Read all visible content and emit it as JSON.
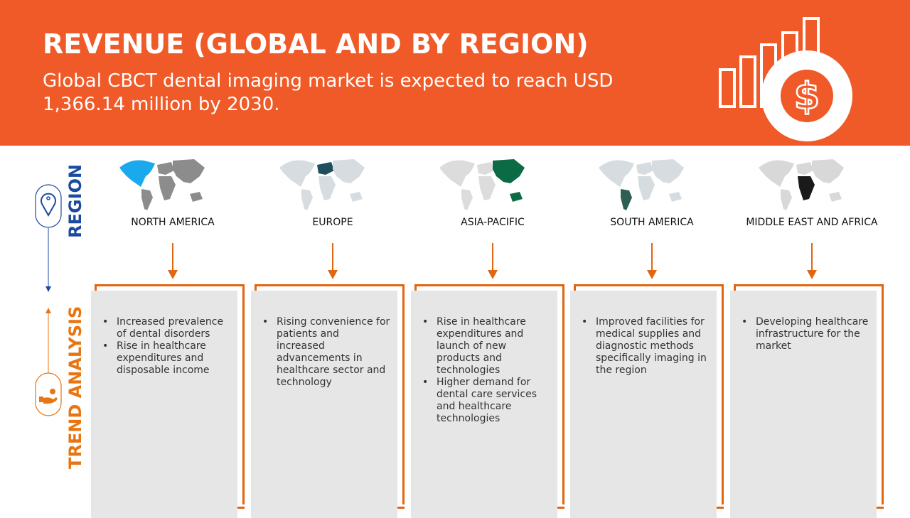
{
  "header": {
    "title": "REVENUE (GLOBAL AND BY REGION)",
    "subtitle": "Global CBCT dental imaging market is expected to reach USD 1,366.14 million by 2030.",
    "icon": "revenue-chart-dollar-icon",
    "background": "#F05A28"
  },
  "side": {
    "region_label": "REGION",
    "trend_label": "TREND ANALYSIS",
    "region_color": "#1B4BA0",
    "trend_color": "#E87511"
  },
  "regions": [
    {
      "name": "NORTH AMERICA",
      "highlight": "#19A9EC",
      "map_base": "#8C8C8C",
      "bullets": [
        "Increased prevalence of dental disorders",
        "Rise in healthcare expenditures and disposable income"
      ]
    },
    {
      "name": "EUROPE",
      "highlight": "#1E4F5E",
      "map_base": "#D6DCDF",
      "bullets": [
        "Rising convenience for patients and increased advancements in healthcare sector and technology"
      ]
    },
    {
      "name": "ASIA-PACIFIC",
      "highlight": "#0B6B45",
      "map_base": "#DCDCDC",
      "bullets": [
        "Rise in healthcare expenditures and launch of new products and technologies",
        "Higher demand for dental care services and healthcare technologies"
      ]
    },
    {
      "name": "SOUTH AMERICA",
      "highlight": "#2F5E53",
      "map_base": "#D6DCDF",
      "bullets": [
        "Improved facilities for medical supplies and diagnostic methods specifically imaging in the region"
      ]
    },
    {
      "name": "MIDDLE EAST AND AFRICA",
      "highlight": "#1A1A1A",
      "map_base": "#D8D8D8",
      "bullets": [
        "Developing healthcare infrastructure for the market"
      ]
    }
  ]
}
